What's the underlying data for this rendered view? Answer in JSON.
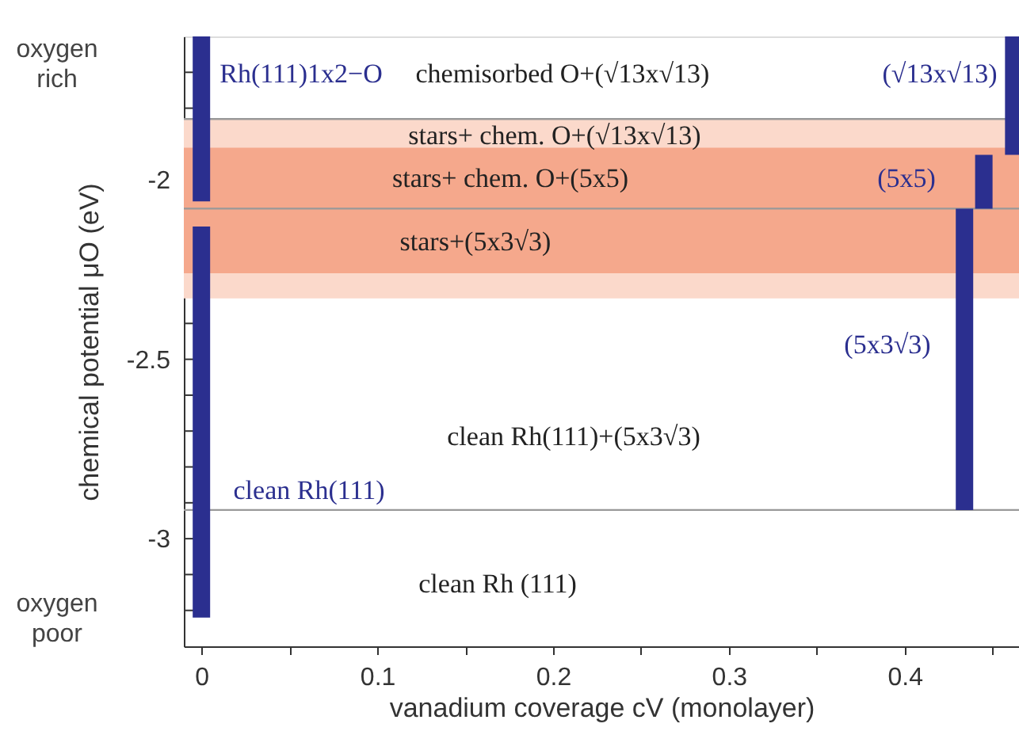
{
  "chart_data": {
    "type": "bar",
    "xlabel": "vanadium coverage cV (monolayer)",
    "ylabel": "chemical potential μO (eV)",
    "series": [
      {
        "color": "#2b2f8f",
        "x": [
          0,
          0.434,
          0.445,
          0.462
        ],
        "base": [
          -2.06,
          -2.92,
          -2.08,
          -1.93
        ],
        "values": [
          0.46,
          0.84,
          0.15,
          0.33
        ]
      },
      {
        "color": "#2b2f8f",
        "x": [
          0
        ],
        "base": [
          -3.22
        ],
        "values": [
          1.09
        ]
      }
    ],
    "xlim": [
      -0.01,
      0.465
    ],
    "ylim": [
      -3.3,
      -1.6
    ],
    "xticks": [
      0,
      {
        "value": 0.05,
        "label": null
      },
      0.1,
      {
        "value": 0.15,
        "label": null
      },
      0.2,
      {
        "value": 0.25,
        "label": null
      },
      0.3,
      {
        "value": 0.35,
        "label": null
      },
      0.4,
      {
        "value": 0.45,
        "label": null
      }
    ],
    "yticks": [
      {
        "value": -3.2,
        "label": null
      },
      {
        "value": -3.1,
        "label": null
      },
      -3,
      {
        "value": -2.9,
        "label": null
      },
      {
        "value": -2.8,
        "label": null
      },
      {
        "value": -2.7,
        "label": null
      },
      {
        "value": -2.6,
        "label": null
      },
      -2.5,
      {
        "value": -2.4,
        "label": null
      },
      {
        "value": -2.3,
        "label": null
      },
      {
        "value": -2.2,
        "label": null
      },
      {
        "value": -2.1,
        "label": null
      },
      -2,
      {
        "value": -1.9,
        "label": null
      },
      {
        "value": -1.8,
        "label": null
      },
      {
        "value": -1.7,
        "label": null
      }
    ],
    "bands": [
      {
        "axis": "y",
        "from": -2.33,
        "to": -1.83,
        "color": "#fbd9cb"
      },
      {
        "axis": "y",
        "from": -2.26,
        "to": -1.91,
        "color": "#f5a88c"
      }
    ],
    "ref_lines": [
      {
        "axis": "y",
        "value": -1.83,
        "color": "#999999"
      },
      {
        "axis": "y",
        "value": -2.08,
        "color": "#999999"
      },
      {
        "axis": "y",
        "value": -2.92,
        "color": "#999999"
      }
    ],
    "grid": false,
    "annotations": [
      "Rh(111)1x2−O",
      "chemisorbed O+(√13x√13)",
      "(√13x√13)",
      "stars+ chem. O+(√13x√13)",
      "stars+ chem. O+(5x5)",
      "(5x5)",
      "stars+(5x3√3)",
      "(5x3√3)",
      "clean Rh(111)+(5x3√3)",
      "clean Rh(111)",
      "clean Rh (111)",
      "oxygen rich",
      "oxygen poor"
    ]
  }
}
